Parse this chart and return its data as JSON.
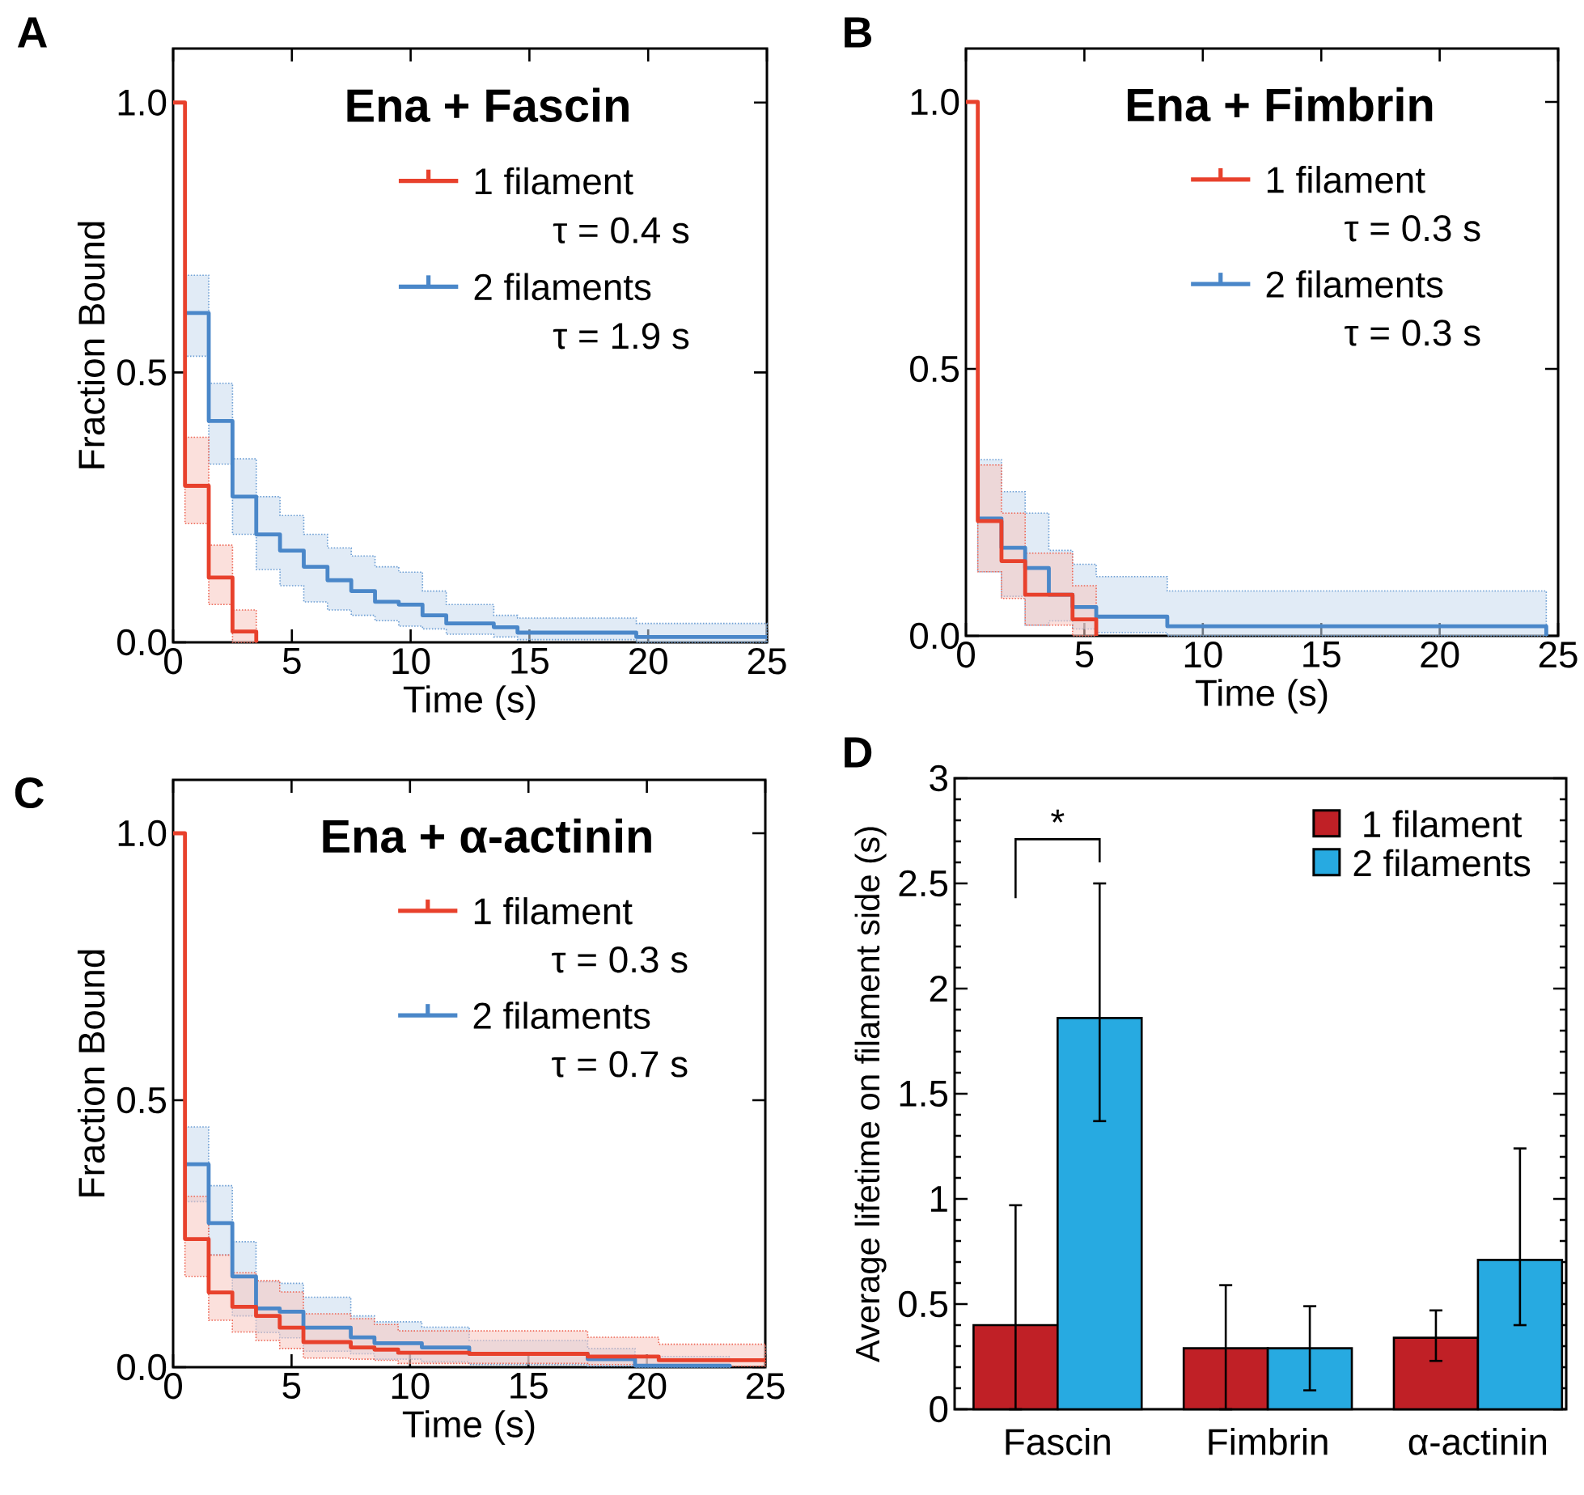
{
  "chart_data": [
    {
      "type": "step",
      "title": "Ena + Fascin",
      "xlabel": "Time (s)",
      "ylabel": "Fraction Bound",
      "xlim": [
        0,
        25
      ],
      "ylim": [
        0,
        1.1
      ],
      "xticks": [
        0,
        5,
        10,
        15,
        20,
        25
      ],
      "yticks": [
        {
          "value": 0,
          "label": "0.0"
        },
        {
          "value": 0.5,
          "label": "0.5"
        },
        {
          "value": 1,
          "label": "1.0"
        }
      ],
      "legend": "top right",
      "annotations": [
        "A",
        "τ = 0.4 s",
        "τ = 1.9 s"
      ],
      "series": [
        {
          "name": "1 filament",
          "color": "#e8412c",
          "x": [
            0,
            0.5,
            1.5,
            2.5,
            3.5
          ],
          "values": [
            1.0,
            0.29,
            0.12,
            0.02,
            0
          ],
          "lower": [
            null,
            0.22,
            0.07,
            0.0,
            0.0
          ],
          "upper": [
            null,
            0.38,
            0.18,
            0.06,
            0.06
          ]
        },
        {
          "name": "2 filaments",
          "color": "#4a87c9",
          "x": [
            0.5,
            1.5,
            2.5,
            3.5,
            4.5,
            5.5,
            6.5,
            7.5,
            8.5,
            9.5,
            10.5,
            11.5,
            13.5,
            14.5,
            19.5,
            25
          ],
          "values": [
            0.61,
            0.41,
            0.27,
            0.2,
            0.17,
            0.14,
            0.115,
            0.095,
            0.075,
            0.07,
            0.05,
            0.035,
            0.028,
            0.018,
            0.01,
            0.01
          ],
          "lower": [
            0.53,
            0.33,
            0.2,
            0.135,
            0.105,
            0.075,
            0.06,
            0.05,
            0.04,
            0.03,
            0.025,
            0.015,
            0.01,
            0.005,
            0.0,
            0.0
          ],
          "upper": [
            0.68,
            0.48,
            0.34,
            0.27,
            0.235,
            0.2,
            0.175,
            0.16,
            0.14,
            0.13,
            0.095,
            0.07,
            0.05,
            0.045,
            0.035,
            0.035
          ]
        }
      ]
    },
    {
      "type": "step",
      "title": "Ena + Fimbrin",
      "xlabel": "Time (s)",
      "xlim": [
        0,
        25
      ],
      "ylim": [
        0,
        1.1
      ],
      "xticks": [
        0,
        5,
        10,
        15,
        20,
        25
      ],
      "yticks": [
        {
          "value": 0,
          "label": "0.0"
        },
        {
          "value": 0.5,
          "label": "0.5"
        },
        {
          "value": 1,
          "label": "1.0"
        }
      ],
      "legend": "top right",
      "annotations": [
        "B",
        "τ = 0.3 s",
        "τ = 0.3 s"
      ],
      "series": [
        {
          "name": "1 filament",
          "color": "#e8412c",
          "x": [
            0,
            0.5,
            1.5,
            2.5,
            4.5,
            5.5
          ],
          "values": [
            1.0,
            0.215,
            0.14,
            0.077,
            0.031,
            0
          ],
          "lower": [
            null,
            0.12,
            0.07,
            0.02,
            0.0,
            0.0
          ],
          "upper": [
            null,
            0.32,
            0.23,
            0.155,
            0.094,
            0.094
          ]
        },
        {
          "name": "2 filaments",
          "color": "#4a87c9",
          "x": [
            0.5,
            1.5,
            2.5,
            3.5,
            4.5,
            5.5,
            8.5,
            24.5
          ],
          "values": [
            0.22,
            0.165,
            0.127,
            0.077,
            0.054,
            0.036,
            0.018,
            0
          ],
          "lower": [
            0.12,
            0.074,
            0.02,
            0.028,
            0.013,
            0.006,
            0.0,
            0.0
          ],
          "upper": [
            0.33,
            0.27,
            0.23,
            0.16,
            0.134,
            0.111,
            0.084,
            0.084
          ]
        }
      ]
    },
    {
      "type": "step",
      "title": "Ena + α-actinin",
      "xlabel": "Time (s)",
      "ylabel": "Fraction Bound",
      "xlim": [
        0,
        25
      ],
      "ylim": [
        0,
        1.1
      ],
      "xticks": [
        0,
        5,
        10,
        15,
        20,
        25
      ],
      "yticks": [
        {
          "value": 0,
          "label": "0.0"
        },
        {
          "value": 0.5,
          "label": "0.5"
        },
        {
          "value": 1,
          "label": "1.0"
        }
      ],
      "legend": "top right",
      "annotations": [
        "C",
        "τ = 0.3 s",
        "τ = 0.7 s"
      ],
      "series": [
        {
          "name": "1 filament",
          "color": "#e8412c",
          "x": [
            0,
            0.5,
            1.5,
            2.5,
            3.5,
            4.5,
            5.5,
            7.5,
            8.5,
            9.5,
            12.5,
            17.5,
            20.5,
            25
          ],
          "values": [
            1.0,
            0.24,
            0.14,
            0.113,
            0.096,
            0.074,
            0.047,
            0.037,
            0.033,
            0.027,
            0.025,
            0.02,
            0.013,
            0.013
          ],
          "lower": [
            null,
            0.17,
            0.088,
            0.066,
            0.05,
            0.035,
            0.017,
            0.015,
            0.013,
            0.007,
            0.007,
            0.005,
            0.002,
            0.002
          ],
          "upper": [
            null,
            0.32,
            0.21,
            0.177,
            0.162,
            0.141,
            0.1,
            0.091,
            0.08,
            0.068,
            0.068,
            0.056,
            0.043,
            0.043
          ]
        },
        {
          "name": "2 filaments",
          "color": "#4a87c9",
          "x": [
            0.5,
            1.5,
            2.5,
            3.5,
            4.5,
            5.5,
            7.5,
            8.5,
            10.5,
            12.5,
            17.5,
            19.5,
            23.5
          ],
          "values": [
            0.38,
            0.27,
            0.17,
            0.11,
            0.104,
            0.074,
            0.056,
            0.045,
            0.037,
            0.025,
            0.015,
            0.003,
            0
          ],
          "lower": [
            0.31,
            0.21,
            0.096,
            0.065,
            0.055,
            0.03,
            0.025,
            0.015,
            0.01,
            0.005,
            0.002,
            0.0,
            0.0
          ],
          "upper": [
            0.45,
            0.34,
            0.235,
            0.16,
            0.157,
            0.131,
            0.096,
            0.085,
            0.075,
            0.05,
            0.035,
            0.02,
            0.02
          ]
        }
      ]
    },
    {
      "type": "bar",
      "ylabel": "Average lifetime on filament side (s)",
      "categories": [
        "Fascin",
        "Fimbrin",
        "α-actinin"
      ],
      "ylim": [
        0,
        3
      ],
      "yticks": [
        0,
        0.5,
        1,
        1.5,
        2,
        2.5,
        3
      ],
      "legend": "top right",
      "annotations": [
        "D",
        "*"
      ],
      "series": [
        {
          "name": "1 filament",
          "color": "#c02026",
          "values": [
            0.4,
            0.29,
            0.34
          ],
          "errors": [
            [
              0,
              0.97
            ],
            [
              0,
              0.59
            ],
            [
              0.23,
              0.47
            ]
          ]
        },
        {
          "name": "2 filaments",
          "color": "#27aae1",
          "values": [
            1.86,
            0.29,
            0.71
          ],
          "errors": [
            [
              1.37,
              2.5
            ],
            [
              0.09,
              0.49
            ],
            [
              0.4,
              1.24
            ]
          ]
        }
      ]
    }
  ]
}
